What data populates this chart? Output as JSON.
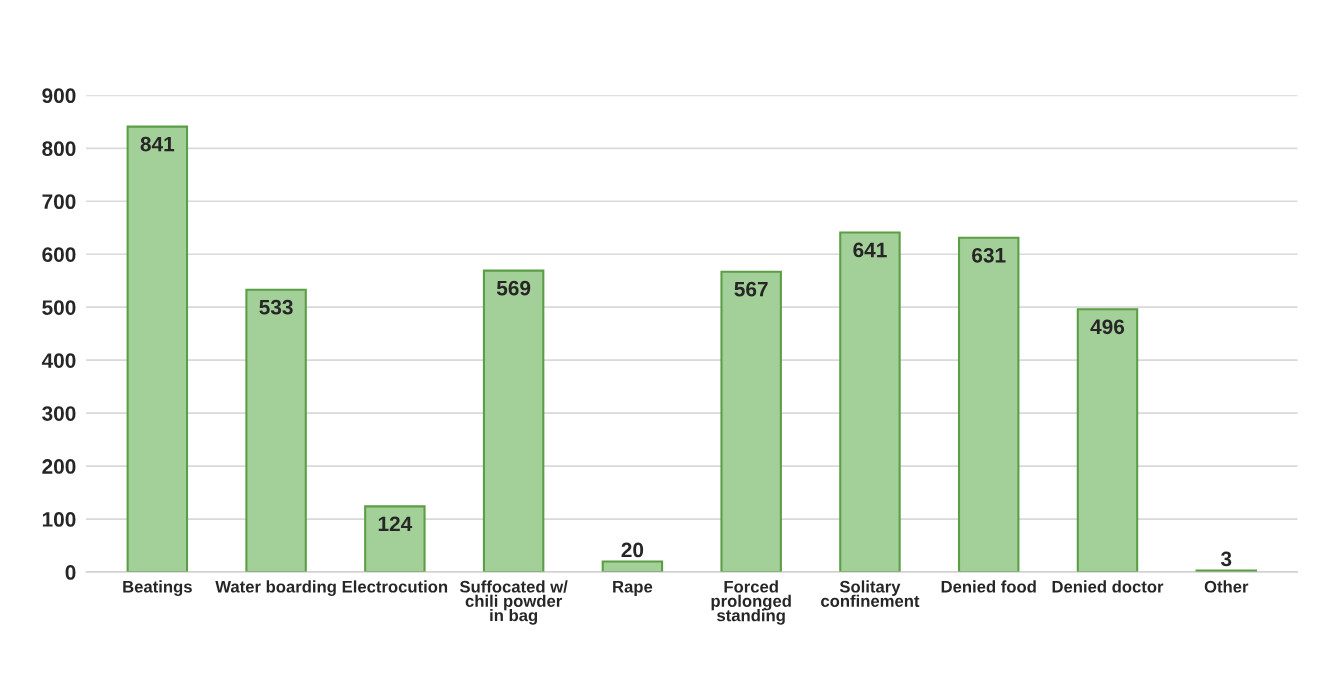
{
  "chart_data": {
    "type": "bar",
    "categories": [
      "Beatings",
      "Water boarding",
      "Electrocution",
      "Suffocated w/ chili powder in bag",
      "Rape",
      "Forced prolonged standing",
      "Solitary confinement",
      "Denied food",
      "Denied doctor",
      "Other"
    ],
    "values": [
      841,
      533,
      124,
      569,
      20,
      567,
      641,
      631,
      496,
      3
    ],
    "color": "#a3cf98",
    "ylim": [
      0,
      900
    ],
    "yticks": [
      0,
      100,
      200,
      300,
      400,
      500,
      600,
      700,
      800,
      900
    ],
    "grid": "y",
    "data_labels": true
  }
}
